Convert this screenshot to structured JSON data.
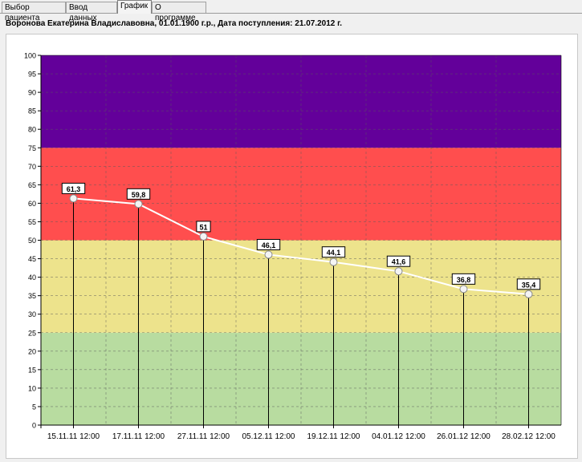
{
  "tabs": [
    {
      "label": "Выбор пациента",
      "active": false
    },
    {
      "label": "Ввод данных",
      "active": false
    },
    {
      "label": "График",
      "active": true
    },
    {
      "label": "О программе",
      "active": false
    }
  ],
  "patient": {
    "info": "Воронова  Екатерина Владиславовна, 01.01.1900 г.р., Дата поступления: 21.07.2012 г."
  },
  "chart_data": {
    "type": "line",
    "ylim": [
      0,
      100
    ],
    "y_ticks": [
      0,
      5,
      10,
      15,
      20,
      25,
      30,
      35,
      40,
      45,
      50,
      55,
      60,
      65,
      70,
      75,
      80,
      85,
      90,
      95,
      100
    ],
    "bands": [
      {
        "from": 0,
        "to": 25,
        "color": "#b8dca0"
      },
      {
        "from": 25,
        "to": 50,
        "color": "#ede38c"
      },
      {
        "from": 50,
        "to": 75,
        "color": "#ff4e4e"
      },
      {
        "from": 75,
        "to": 100,
        "color": "#63009a"
      }
    ],
    "x_labels": [
      "15.11.11 12:00",
      "17.11.11 12:00",
      "27.11.11 12:00",
      "05.12.11 12:00",
      "19.12.11 12:00",
      "04.01.12 12:00",
      "26.01.12 12:00",
      "28.02.12 12:00"
    ],
    "values": [
      61.3,
      59.8,
      51,
      46.1,
      44.1,
      41.6,
      36.8,
      35.4
    ],
    "data_labels": [
      "61,3",
      "59,8",
      "51",
      "46,1",
      "44,1",
      "41,6",
      "36,8",
      "35,4"
    ],
    "line_color": "#ffffff",
    "grid": true
  }
}
